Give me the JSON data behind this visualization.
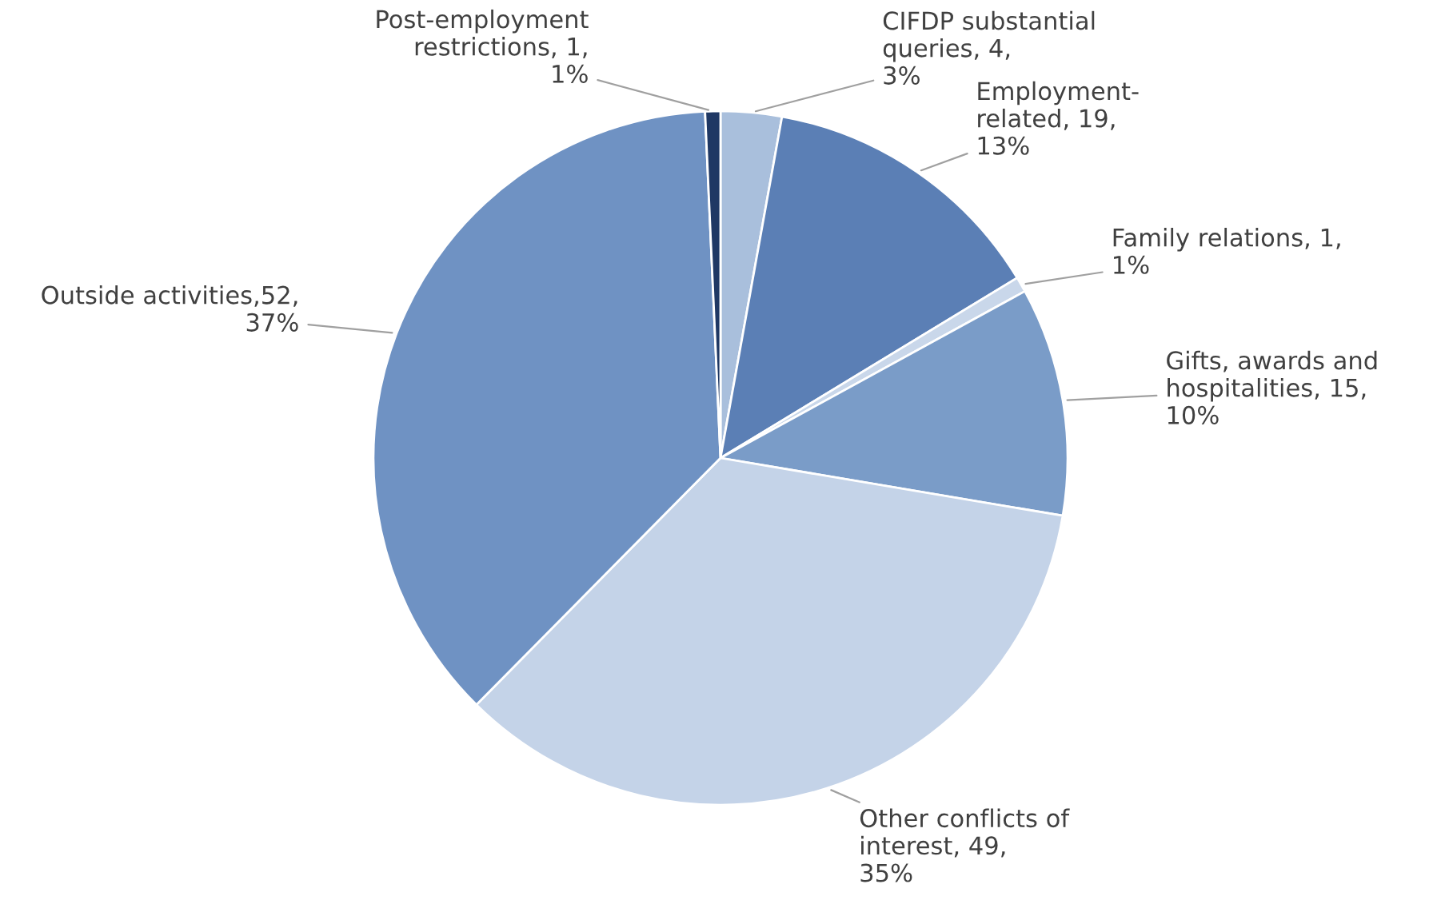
{
  "chart_data": {
    "type": "pie",
    "categories": [
      "CIFDP substantial\nqueries, 4,\n3%",
      "Employment-\nrelated, 19,\n13%",
      "Family relations, 1,\n1%",
      "Gifts, awards and\nhospitalities, 15,\n10%",
      "Other conflicts of\ninterest, 49,\n35%",
      "Outside activities,52,\n37%",
      "Post-employment\nrestrictions, 1,\n1%"
    ],
    "values": [
      4,
      19,
      1,
      15,
      49,
      52,
      1
    ],
    "colors": [
      "#a9bfdc",
      "#5b7fb5",
      "#c9d7ea",
      "#7a9cc8",
      "#c4d3e8",
      "#6f92c3",
      "#1f3864"
    ]
  }
}
